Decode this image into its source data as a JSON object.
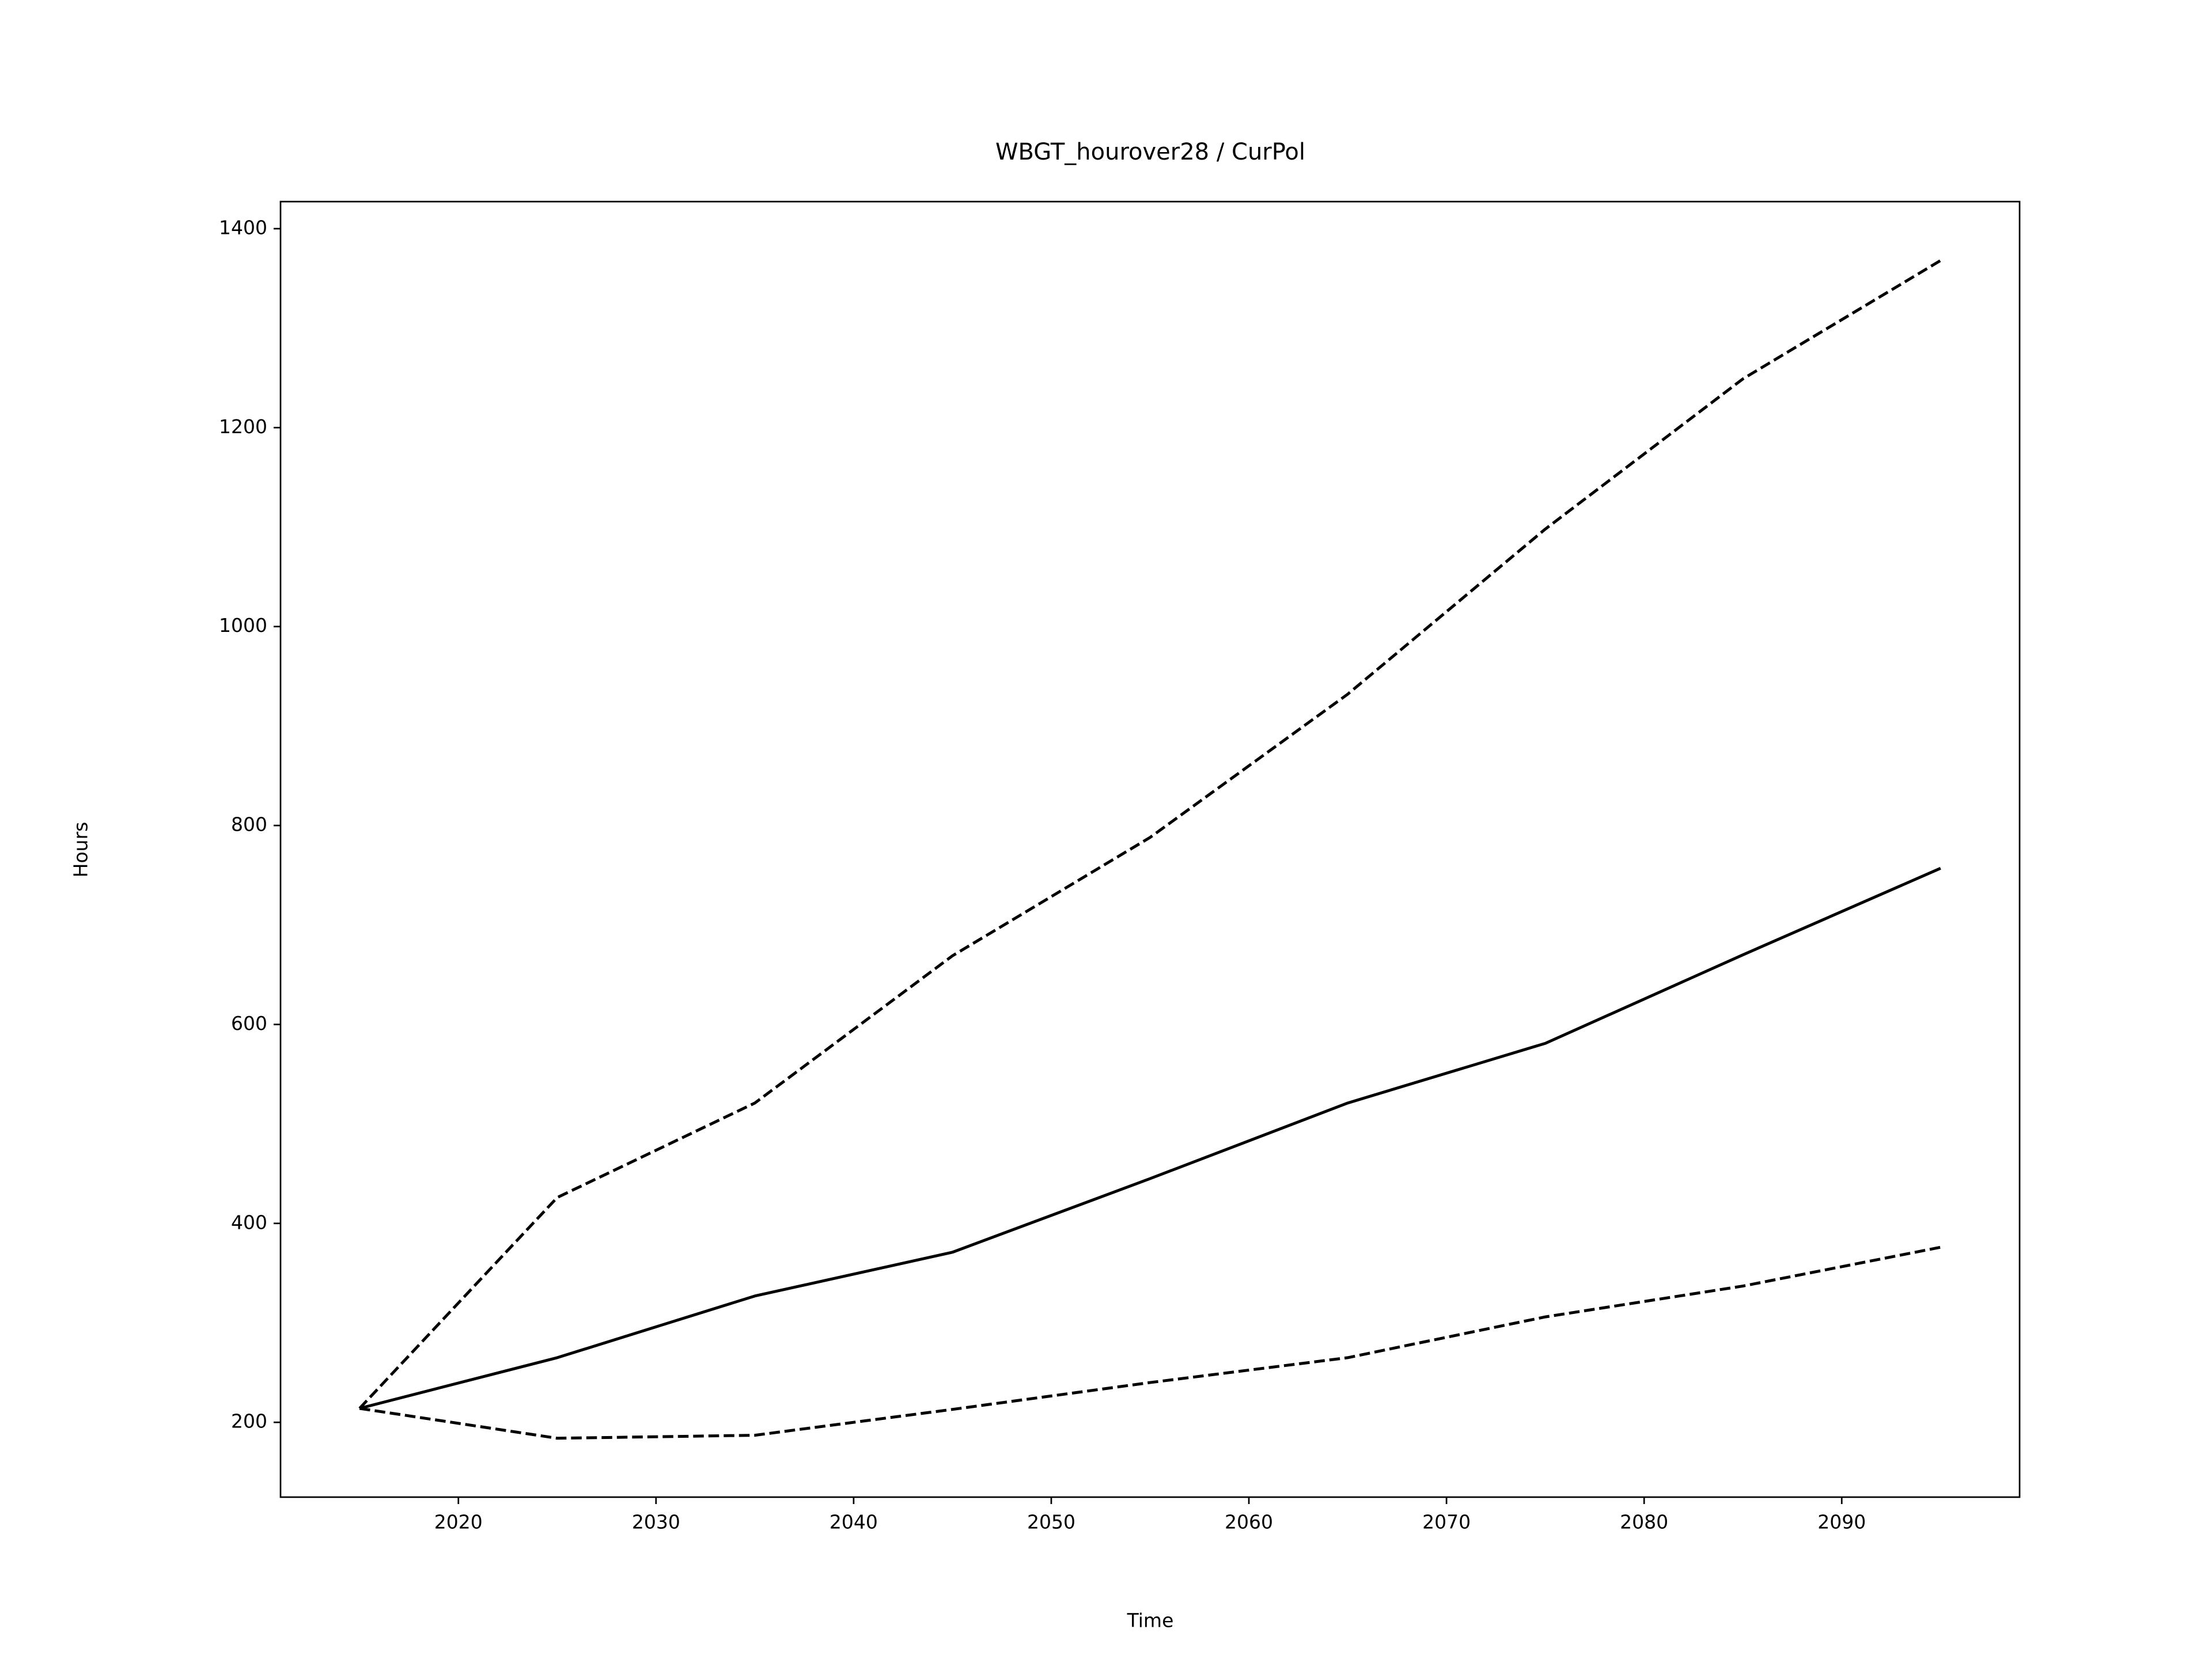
{
  "chart_data": {
    "type": "line",
    "title": "WBGT_hourover28 / CurPol",
    "x_label": "Time",
    "y_label": "Hours",
    "x": [
      2015,
      2025,
      2035,
      2045,
      2055,
      2065,
      2075,
      2085,
      2095
    ],
    "series": [
      {
        "color": "#000000",
        "style": "solid",
        "values": [
          214,
          265,
          327,
          371,
          445,
          521,
          581,
          670,
          757
        ]
      },
      {
        "color": "#000000",
        "style": "dashed",
        "values": [
          214,
          426,
          521,
          669,
          788,
          932,
          1098,
          1249,
          1368
        ]
      },
      {
        "color": "#000000",
        "style": "dashed",
        "values": [
          214,
          184,
          187,
          213,
          240,
          265,
          306,
          337,
          376
        ]
      }
    ],
    "xlim": [
      2011,
      2099
    ],
    "xticks": [
      2020,
      2030,
      2040,
      2050,
      2060,
      2070,
      2080,
      2090
    ],
    "ylim": [
      124.8,
      1427.2
    ],
    "yticks": [
      200,
      400,
      600,
      800,
      1000,
      1200,
      1400
    ],
    "grid": false
  }
}
